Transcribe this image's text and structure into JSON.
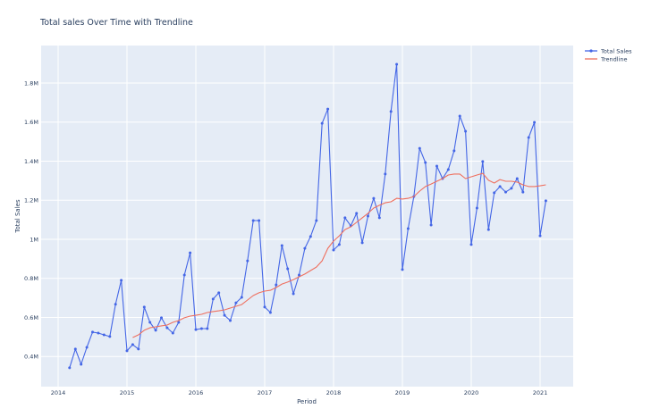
{
  "chart_data": {
    "type": "line",
    "title": "Total sales Over Time with Trendline",
    "xlabel": "Period",
    "ylabel": "Total Sales",
    "x_ticks": [
      "2014",
      "2015",
      "2016",
      "2017",
      "2018",
      "2019",
      "2020",
      "2021"
    ],
    "y_ticks": [
      "0.4M",
      "0.6M",
      "0.8M",
      "1M",
      "1.2M",
      "1.4M",
      "1.6M",
      "1.8M"
    ],
    "y_tick_values": [
      0.4,
      0.6,
      0.8,
      1.0,
      1.2,
      1.4,
      1.6,
      1.8
    ],
    "ylim": [
      0.26,
      1.96
    ],
    "xlim": [
      "2013-10",
      "2021-07"
    ],
    "grid": true,
    "legend_position": "top-right",
    "series": [
      {
        "name": "Total Sales",
        "color": "#4466e6",
        "mode": "lines+markers",
        "start": "2014-03",
        "values": [
          0.342,
          0.438,
          0.36,
          0.447,
          0.525,
          0.52,
          0.511,
          0.502,
          0.667,
          0.79,
          0.429,
          0.461,
          0.438,
          0.653,
          0.575,
          0.534,
          0.598,
          0.547,
          0.52,
          0.575,
          0.817,
          0.931,
          0.538,
          0.543,
          0.543,
          0.694,
          0.726,
          0.611,
          0.584,
          0.675,
          0.703,
          0.89,
          1.096,
          1.096,
          0.653,
          0.625,
          0.767,
          0.968,
          0.849,
          0.721,
          0.817,
          0.954,
          1.014,
          1.096,
          1.594,
          1.667,
          0.945,
          0.973,
          1.11,
          1.069,
          1.133,
          0.982,
          1.119,
          1.21,
          1.11,
          1.334,
          1.654,
          1.896,
          0.845,
          1.055,
          1.219,
          1.466,
          1.393,
          1.073,
          1.375,
          1.311,
          1.357,
          1.453,
          1.631,
          1.553,
          0.973,
          1.16,
          1.398,
          1.05,
          1.238,
          1.27,
          1.242,
          1.261,
          1.311,
          1.242,
          1.521,
          1.599,
          1.018,
          1.197
        ]
      },
      {
        "name": "Trendline",
        "color": "#ef6f5e",
        "mode": "lines",
        "start": "2015-02",
        "values": [
          0.497,
          0.511,
          0.534,
          0.547,
          0.552,
          0.557,
          0.561,
          0.575,
          0.584,
          0.598,
          0.607,
          0.611,
          0.616,
          0.625,
          0.63,
          0.634,
          0.639,
          0.648,
          0.657,
          0.666,
          0.689,
          0.712,
          0.726,
          0.735,
          0.739,
          0.753,
          0.771,
          0.781,
          0.794,
          0.808,
          0.822,
          0.84,
          0.858,
          0.89,
          0.954,
          0.991,
          1.018,
          1.05,
          1.064,
          1.087,
          1.11,
          1.133,
          1.16,
          1.174,
          1.187,
          1.192,
          1.21,
          1.206,
          1.21,
          1.219,
          1.247,
          1.27,
          1.283,
          1.297,
          1.311,
          1.329,
          1.334,
          1.334,
          1.311,
          1.32,
          1.329,
          1.338,
          1.302,
          1.288,
          1.306,
          1.297,
          1.297,
          1.293,
          1.279,
          1.27,
          1.27,
          1.274,
          1.279
        ]
      }
    ],
    "units": "millions"
  },
  "legend": {
    "items": [
      {
        "label": "Total Sales",
        "color": "#4466e6"
      },
      {
        "label": "Trendline",
        "color": "#ef6f5e"
      }
    ]
  },
  "colors": {
    "plot_bg": "#e5ecf6",
    "grid": "#ffffff",
    "text": "#2a3f5f"
  }
}
